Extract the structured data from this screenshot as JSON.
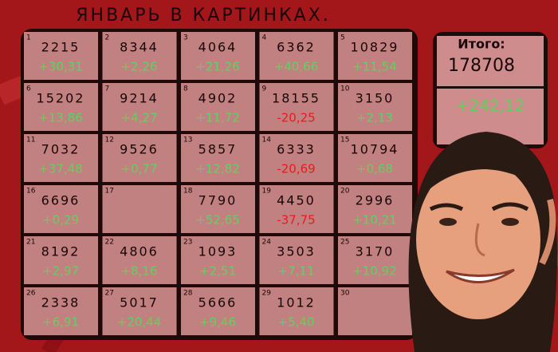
{
  "header": {
    "title": "ЯНВАРЬ В КАРТИНКАХ."
  },
  "days": [
    {
      "day": "1",
      "value": "2215",
      "change": "+30,31"
    },
    {
      "day": "2",
      "value": "8344",
      "change": "+2,26"
    },
    {
      "day": "3",
      "value": "4064",
      "change": "+21,26"
    },
    {
      "day": "4",
      "value": "6362",
      "change": "+40,66"
    },
    {
      "day": "5",
      "value": "10829",
      "change": "+11,54"
    },
    {
      "day": "6",
      "value": "15202",
      "change": "+13,86"
    },
    {
      "day": "7",
      "value": "9214",
      "change": "+4,27"
    },
    {
      "day": "8",
      "value": "4902",
      "change": "+11,72"
    },
    {
      "day": "9",
      "value": "18155",
      "change": "-20,25"
    },
    {
      "day": "10",
      "value": "3150",
      "change": "+2,13"
    },
    {
      "day": "11",
      "value": "7032",
      "change": "+37,48"
    },
    {
      "day": "12",
      "value": "9526",
      "change": "+0,77"
    },
    {
      "day": "13",
      "value": "5857",
      "change": "+12,82"
    },
    {
      "day": "14",
      "value": "6333",
      "change": "-20,69"
    },
    {
      "day": "15",
      "value": "10794",
      "change": "+0,68"
    },
    {
      "day": "16",
      "value": "6696",
      "change": "+0,29"
    },
    {
      "day": "17"
    },
    {
      "day": "18",
      "value": "7790",
      "change": "+52,65"
    },
    {
      "day": "19",
      "value": "4450",
      "change": "-37,75"
    },
    {
      "day": "20",
      "value": "2996",
      "change": "+10,21"
    },
    {
      "day": "21",
      "value": "8192",
      "change": "+2,97"
    },
    {
      "day": "22",
      "value": "4806",
      "change": "+8,16"
    },
    {
      "day": "23",
      "value": "1093",
      "change": "+2,51"
    },
    {
      "day": "24",
      "value": "3503",
      "change": "+7,11"
    },
    {
      "day": "25",
      "value": "3170",
      "change": "+10,92"
    },
    {
      "day": "26",
      "value": "2338",
      "change": "+6,91"
    },
    {
      "day": "27",
      "value": "5017",
      "change": "+20,44"
    },
    {
      "day": "28",
      "value": "5666",
      "change": "+9,46"
    },
    {
      "day": "29",
      "value": "1012",
      "change": "+5,40"
    },
    {
      "day": "30"
    }
  ],
  "total": {
    "label": "Итого:",
    "value": "178708",
    "change": "+242,12"
  }
}
